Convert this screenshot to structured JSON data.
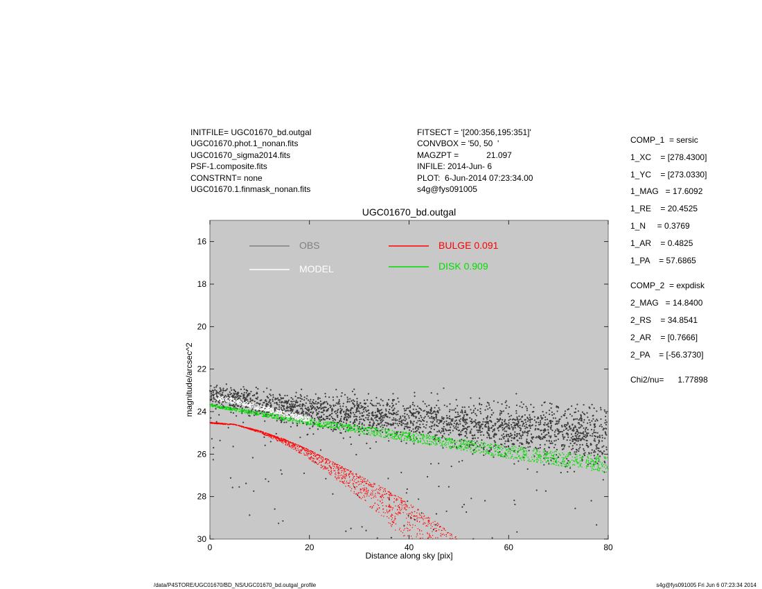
{
  "header_left": [
    "INITFILE= UGC01670_bd.outgal",
    "UGC01670.phot.1_nonan.fits",
    "UGC01670_sigma2014.fits",
    "PSF-1.composite.fits",
    "CONSTRNT= none",
    "UGC01670.1.finmask_nonan.fits"
  ],
  "header_mid": [
    "FITSECT = '[200:356,195:351]'",
    "CONVBOX = '50, 50  '",
    "MAGZPT =            21.097",
    "INFILE: 2014-Jun- 6",
    "PLOT:  6-Jun-2014 07:23:34.00",
    "s4g@fys091005"
  ],
  "params": {
    "group1": [
      "COMP_1  = sersic",
      "1_XC    = [278.4300]",
      "1_YC    = [273.0330]",
      "1_MAG   = 17.6092",
      "1_RE    = 20.4525",
      "1_N     = 0.3769",
      "1_AR    = 0.4825",
      "1_PA    = 57.6865"
    ],
    "group2": [
      "COMP_2  = expdisk",
      "2_MAG   = 14.8400",
      "2_RS    = 34.8541",
      "2_AR    = [0.7666]",
      "2_PA    = [-56.3730]"
    ],
    "chi": "Chi2/nu=      1.77898"
  },
  "footer": {
    "left": "/data/P4STORE/UGC01670/BD_NS/UGC01670_bd.outgal_profile",
    "right": "s4g@fys091005  Fri Jun  6 07:23:34 2014"
  },
  "colors": {
    "background": "#c8c8c8",
    "obs": "#3a3a3a",
    "obs_legend": "#808080",
    "model": "#ffffff",
    "bulge": "#ff0000",
    "disk": "#00dd00"
  },
  "chart_data": {
    "type": "scatter",
    "title": "UGC01670_bd.outgal",
    "xlabel": "Distance along sky [pix]",
    "ylabel": "magnitude/arcsec^2",
    "xlim": [
      0,
      80
    ],
    "ylim": [
      30,
      15
    ],
    "y_inverted": true,
    "xticks": [
      0,
      20,
      40,
      60,
      80
    ],
    "yticks": [
      16,
      18,
      20,
      22,
      24,
      26,
      28,
      30
    ],
    "grid": false,
    "legend_placement": "top",
    "legend": [
      {
        "label": "OBS",
        "color": "#808080"
      },
      {
        "label": "MODEL",
        "color": "#ffffff"
      },
      {
        "label": "BULGE  0.091",
        "color": "#ff0000"
      },
      {
        "label": "DISK  0.909",
        "color": "#00dd00"
      }
    ],
    "series": [
      {
        "name": "OBS",
        "x": [
          0,
          5,
          10,
          20,
          30,
          40,
          50,
          60,
          70,
          80
        ],
        "y": [
          23.2,
          23.4,
          23.7,
          24.0,
          24.2,
          24.4,
          24.6,
          24.8,
          25.0,
          25.2
        ]
      },
      {
        "name": "MODEL",
        "x": [
          0,
          5,
          10,
          15,
          20
        ],
        "y": [
          23.3,
          23.5,
          23.8,
          24.1,
          24.4
        ]
      },
      {
        "name": "DISK  0.909",
        "x": [
          0,
          10,
          20,
          30,
          40,
          50,
          60,
          70,
          80
        ],
        "y": [
          23.7,
          24.1,
          24.5,
          24.85,
          25.2,
          25.55,
          25.9,
          26.2,
          26.5
        ]
      },
      {
        "name": "BULGE  0.091",
        "x": [
          0,
          5,
          10,
          15,
          20,
          25,
          30,
          35,
          40,
          45,
          50
        ],
        "y": [
          24.5,
          24.6,
          24.9,
          25.3,
          25.8,
          26.4,
          27.0,
          27.6,
          28.3,
          29.1,
          30.0
        ]
      }
    ]
  }
}
